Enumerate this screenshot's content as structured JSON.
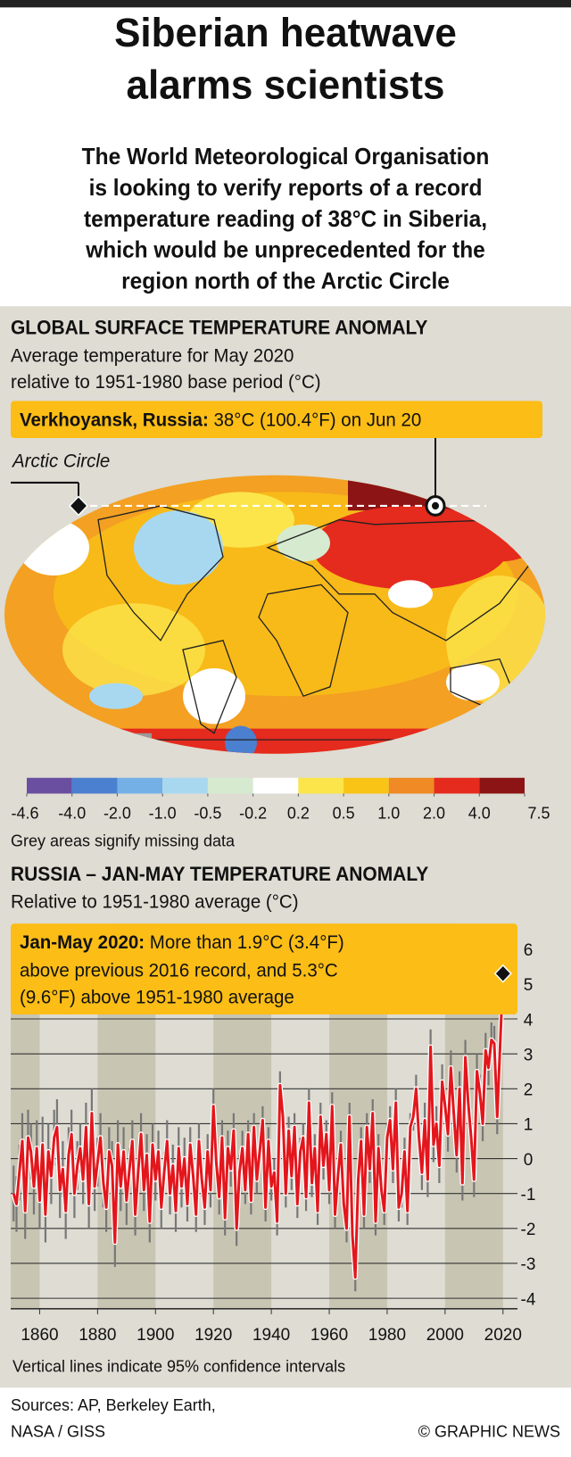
{
  "title": [
    "Siberian heatwave",
    "alarms scientists"
  ],
  "subtitle": [
    "The World Meteorological Organisation",
    "is looking to verify reports of a record",
    "temperature reading of 38°C in Siberia,",
    "which would be unprecedented for the",
    "region north of the Arctic Circle"
  ],
  "map": {
    "heading": "GLOBAL SURFACE TEMPERATURE ANOMALY",
    "description": [
      "Average temperature for May 2020",
      "relative to 1951-1980 base period (°C)"
    ],
    "callout": {
      "label": "Verkhoyansk, Russia:",
      "text": "38°C (100.4°F) on Jun 20"
    },
    "arctic_label": "Arctic Circle",
    "colorscale": {
      "colors": [
        "#6a4fa0",
        "#4b7fcf",
        "#74b0e6",
        "#a8d8f0",
        "#d6ead0",
        "#ffffff",
        "#fbe54a",
        "#f9c415",
        "#f08a24",
        "#e52a1e",
        "#8c1414"
      ],
      "ticks": [
        -4.6,
        {
          "value": -4,
          "label": "-4.0"
        },
        {
          "value": -2,
          "label": "-2.0"
        },
        {
          "value": -1,
          "label": "-1.0"
        },
        -0.5,
        -0.2,
        0.2,
        0.5,
        {
          "value": 1,
          "label": "1.0"
        },
        {
          "value": 2,
          "label": "2.0"
        },
        {
          "value": 4,
          "label": "4.0"
        },
        7.5
      ]
    },
    "note": "Grey areas signify missing data"
  },
  "chart_data": {
    "type": "line",
    "title": "RUSSIA – JAN-MAY TEMPERATURE ANOMALY",
    "subtitle": "Relative to 1951-1980 average (°C)",
    "annotation": {
      "label": "Jan-May 2020:",
      "lines": [
        "More than 1.9°C (3.4°F)",
        "above previous 2016 record, and 5.3°C",
        "(9.6°F) above 1951-1980 average"
      ]
    },
    "note": "Vertical lines indicate 95% confidence intervals",
    "x": [
      1851,
      1852,
      1853,
      1854,
      1855,
      1856,
      1857,
      1858,
      1859,
      1860,
      1861,
      1862,
      1863,
      1864,
      1865,
      1866,
      1867,
      1868,
      1869,
      1870,
      1871,
      1872,
      1873,
      1874,
      1875,
      1876,
      1877,
      1878,
      1879,
      1880,
      1881,
      1882,
      1883,
      1884,
      1885,
      1886,
      1887,
      1888,
      1889,
      1890,
      1891,
      1892,
      1893,
      1894,
      1895,
      1896,
      1897,
      1898,
      1899,
      1900,
      1901,
      1902,
      1903,
      1904,
      1905,
      1906,
      1907,
      1908,
      1909,
      1910,
      1911,
      1912,
      1913,
      1914,
      1915,
      1916,
      1917,
      1918,
      1919,
      1920,
      1921,
      1922,
      1923,
      1924,
      1925,
      1926,
      1927,
      1928,
      1929,
      1930,
      1931,
      1932,
      1933,
      1934,
      1935,
      1936,
      1937,
      1938,
      1939,
      1940,
      1941,
      1942,
      1943,
      1944,
      1945,
      1946,
      1947,
      1948,
      1949,
      1950,
      1951,
      1952,
      1953,
      1954,
      1955,
      1956,
      1957,
      1958,
      1959,
      1960,
      1961,
      1962,
      1963,
      1964,
      1965,
      1966,
      1967,
      1968,
      1969,
      1970,
      1971,
      1972,
      1973,
      1974,
      1975,
      1976,
      1977,
      1978,
      1979,
      1980,
      1981,
      1982,
      1983,
      1984,
      1985,
      1986,
      1987,
      1988,
      1989,
      1990,
      1991,
      1992,
      1993,
      1994,
      1995,
      1996,
      1997,
      1998,
      1999,
      2000,
      2001,
      2002,
      2003,
      2004,
      2005,
      2006,
      2007,
      2008,
      2009,
      2010,
      2011,
      2012,
      2013,
      2014,
      2015,
      2016,
      2017,
      2018,
      2019,
      2020
    ],
    "series": [
      {
        "color": "#e3161c",
        "values": [
          -1.0,
          -1.3,
          -0.4,
          0.5,
          -1.5,
          0.6,
          0.2,
          -0.8,
          0.3,
          -1.2,
          0.4,
          -1.6,
          0.2,
          -0.5,
          0.6,
          0.9,
          -0.9,
          -0.3,
          -1.5,
          0.1,
          0.7,
          -1.0,
          -0.2,
          0.3,
          -0.6,
          0.9,
          -1.3,
          1.3,
          -0.8,
          -0.1,
          0.6,
          -0.7,
          -1.4,
          0.2,
          -0.2,
          -2.4,
          0.4,
          -0.8,
          0.2,
          -1.2,
          -0.3,
          0.5,
          -1.6,
          -0.4,
          0.7,
          -0.9,
          0.1,
          -1.8,
          0.4,
          -0.6,
          0.2,
          -1.4,
          -0.4,
          0.5,
          -1.0,
          -0.2,
          -1.5,
          0.3,
          -0.8,
          0.0,
          -1.3,
          0.4,
          -0.5,
          -1.6,
          0.5,
          -0.6,
          -1.4,
          0.2,
          -0.9,
          1.5,
          -0.1,
          -1.1,
          0.6,
          -1.7,
          0.3,
          -0.3,
          0.8,
          -2.0,
          -0.4,
          0.3,
          -0.9,
          0.7,
          -1.2,
          0.9,
          -0.6,
          0.2,
          1.1,
          -1.4,
          0.5,
          -0.8,
          -0.4,
          -1.8,
          2.1,
          1.2,
          -1.0,
          0.8,
          -0.5,
          0.9,
          -1.3,
          0.2,
          0.6,
          -1.1,
          1.6,
          -0.7,
          0.3,
          -1.5,
          1.2,
          -0.2,
          0.7,
          -0.9,
          1.5,
          -1.6,
          -0.5,
          0.4,
          -1.3,
          -2.0,
          1.2,
          -2.2,
          -3.4,
          -0.6,
          0.5,
          -1.6,
          0.9,
          -0.3,
          1.3,
          -1.8,
          0.3,
          -0.9,
          -1.5,
          0.6,
          1.1,
          -0.3,
          1.6,
          -1.4,
          -1.0,
          0.2,
          -1.5,
          0.9,
          1.2,
          2.0,
          0.6,
          -0.4,
          1.1,
          -0.6,
          3.2,
          0.4,
          1.0,
          -0.2,
          2.2,
          1.5,
          0.7,
          2.6,
          1.3,
          0.1,
          2.0,
          -0.7,
          2.9,
          1.6,
          0.6,
          -0.6,
          2.5,
          1.9,
          1.0,
          3.1,
          2.6,
          3.4,
          3.3,
          1.2,
          3.2,
          5.3
        ],
        "errors": [
          0.8,
          0.8,
          0.8,
          0.8,
          0.8,
          0.8,
          0.8,
          0.8,
          0.8,
          0.8,
          0.8,
          0.8,
          0.8,
          0.8,
          0.8,
          0.8,
          0.8,
          0.8,
          0.8,
          0.8,
          0.7,
          0.7,
          0.7,
          0.7,
          0.7,
          0.7,
          0.7,
          0.7,
          0.7,
          0.7,
          0.7,
          0.7,
          0.7,
          0.7,
          0.7,
          0.7,
          0.7,
          0.7,
          0.7,
          0.7,
          0.6,
          0.6,
          0.6,
          0.6,
          0.6,
          0.6,
          0.6,
          0.6,
          0.6,
          0.6,
          0.6,
          0.6,
          0.6,
          0.6,
          0.6,
          0.6,
          0.6,
          0.6,
          0.6,
          0.6,
          0.5,
          0.5,
          0.5,
          0.5,
          0.5,
          0.5,
          0.5,
          0.5,
          0.5,
          0.5,
          0.5,
          0.5,
          0.5,
          0.5,
          0.5,
          0.5,
          0.5,
          0.5,
          0.5,
          0.5,
          0.4,
          0.4,
          0.4,
          0.4,
          0.4,
          0.4,
          0.4,
          0.4,
          0.4,
          0.4,
          0.4,
          0.4,
          0.4,
          0.4,
          0.4,
          0.4,
          0.4,
          0.4,
          0.4,
          0.4,
          0.4,
          0.4,
          0.4,
          0.4,
          0.4,
          0.4,
          0.4,
          0.4,
          0.4,
          0.4,
          0.4,
          0.4,
          0.4,
          0.4,
          0.4,
          0.4,
          0.4,
          0.4,
          0.4,
          0.4,
          0.4,
          0.4,
          0.4,
          0.4,
          0.4,
          0.4,
          0.4,
          0.4,
          0.4,
          0.4,
          0.4,
          0.4,
          0.4,
          0.4,
          0.4,
          0.4,
          0.4,
          0.4,
          0.4,
          0.4,
          0.5,
          0.5,
          0.5,
          0.5,
          0.5,
          0.5,
          0.5,
          0.5,
          0.5,
          0.5,
          0.5,
          0.5,
          0.5,
          0.5,
          0.5,
          0.5,
          0.5,
          0.5,
          0.5,
          0.5,
          0.5,
          0.5,
          0.5,
          0.5,
          0.5,
          0.5,
          0.5,
          0.5,
          0.5,
          0.5
        ]
      }
    ],
    "xlim": [
      1850,
      2025
    ],
    "xticks": [
      1860,
      1880,
      1900,
      1920,
      1940,
      1960,
      1980,
      2000,
      2020
    ],
    "ylim": [
      -4.3,
      6.6
    ],
    "yticks": [
      -4,
      -3,
      -2,
      -1,
      0,
      1,
      2,
      3,
      4,
      5,
      6
    ],
    "grid": true
  },
  "footer": {
    "sources": [
      "Sources: AP, Berkeley Earth,",
      "NASA / GISS"
    ],
    "credit": "© GRAPHIC NEWS"
  }
}
